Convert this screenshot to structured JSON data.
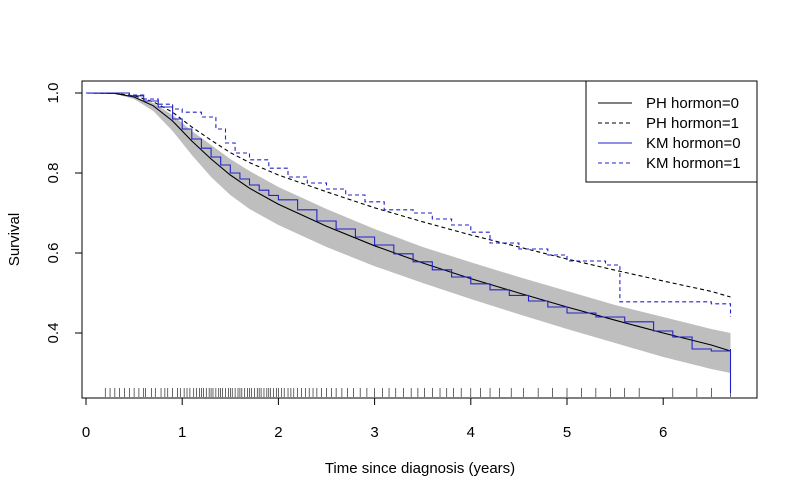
{
  "chart_data": {
    "type": "line",
    "title": "",
    "xlabel": "Time since diagnosis (years)",
    "ylabel": "Survival",
    "xlim": [
      0,
      7
    ],
    "ylim": [
      0.235,
      1.03
    ],
    "x_ticks": [
      "0",
      "1",
      "2",
      "3",
      "4",
      "5",
      "6"
    ],
    "y_ticks": [
      "0.4",
      "0.6",
      "0.8",
      "1.0"
    ],
    "grid": false,
    "legend_position": "top-right",
    "legend": [
      "PH hormon=0",
      "PH hormon=1",
      "KM hormon=0",
      "KM hormon=1"
    ],
    "colors": {
      "ph": "#000000",
      "km": "#2222cc",
      "band": "#bebebe",
      "axis": "#000000"
    },
    "confidence_band": {
      "x": [
        0,
        0.3,
        0.5,
        0.7,
        0.9,
        1.1,
        1.3,
        1.5,
        1.7,
        2.0,
        2.5,
        3.0,
        3.5,
        4.0,
        4.5,
        5.0,
        5.5,
        6.0,
        6.5,
        6.7
      ],
      "lower": [
        1.0,
        0.998,
        0.985,
        0.955,
        0.905,
        0.845,
        0.79,
        0.745,
        0.71,
        0.67,
        0.615,
        0.567,
        0.525,
        0.485,
        0.447,
        0.41,
        0.375,
        0.34,
        0.31,
        0.3
      ],
      "upper": [
        1.0,
        1.0,
        0.99,
        0.975,
        0.945,
        0.905,
        0.87,
        0.835,
        0.805,
        0.765,
        0.71,
        0.66,
        0.615,
        0.577,
        0.54,
        0.505,
        0.47,
        0.44,
        0.41,
        0.4
      ]
    },
    "series": [
      {
        "name": "PH hormon=0",
        "style": "solid",
        "method": "PH",
        "x": [
          0,
          0.3,
          0.5,
          0.7,
          0.9,
          1.1,
          1.3,
          1.5,
          1.7,
          2.0,
          2.5,
          3.0,
          3.5,
          4.0,
          4.5,
          5.0,
          5.5,
          6.0,
          6.5,
          6.7
        ],
        "y": [
          1.0,
          0.999,
          0.99,
          0.968,
          0.93,
          0.88,
          0.835,
          0.795,
          0.762,
          0.722,
          0.667,
          0.618,
          0.575,
          0.536,
          0.5,
          0.465,
          0.432,
          0.4,
          0.37,
          0.355
        ]
      },
      {
        "name": "PH hormon=1",
        "style": "dashed",
        "method": "PH",
        "x": [
          0,
          0.3,
          0.5,
          0.7,
          0.9,
          1.1,
          1.3,
          1.5,
          1.7,
          2.0,
          2.5,
          3.0,
          3.5,
          4.0,
          4.5,
          5.0,
          5.5,
          6.0,
          6.5,
          6.7
        ],
        "y": [
          1.0,
          0.999,
          0.993,
          0.978,
          0.952,
          0.915,
          0.882,
          0.851,
          0.826,
          0.795,
          0.753,
          0.713,
          0.678,
          0.645,
          0.615,
          0.585,
          0.557,
          0.53,
          0.504,
          0.49
        ]
      },
      {
        "name": "KM hormon=0",
        "style": "solid-step",
        "method": "KM",
        "x": [
          0,
          0.45,
          0.6,
          0.75,
          0.9,
          1.0,
          1.1,
          1.2,
          1.3,
          1.4,
          1.5,
          1.6,
          1.7,
          1.8,
          1.9,
          2.0,
          2.2,
          2.4,
          2.6,
          2.8,
          3.0,
          3.2,
          3.4,
          3.6,
          3.8,
          4.0,
          4.2,
          4.4,
          4.6,
          4.8,
          5.0,
          5.3,
          5.6,
          5.9,
          6.1,
          6.3,
          6.5,
          6.7,
          6.7
        ],
        "y": [
          1.0,
          0.993,
          0.98,
          0.965,
          0.935,
          0.91,
          0.885,
          0.862,
          0.84,
          0.82,
          0.8,
          0.785,
          0.77,
          0.757,
          0.744,
          0.733,
          0.708,
          0.68,
          0.66,
          0.64,
          0.62,
          0.598,
          0.578,
          0.558,
          0.54,
          0.523,
          0.508,
          0.494,
          0.48,
          0.465,
          0.45,
          0.44,
          0.428,
          0.405,
          0.39,
          0.36,
          0.355,
          0.36,
          0.25
        ]
      },
      {
        "name": "KM hormon=1",
        "style": "dashed-step",
        "method": "KM",
        "x": [
          0,
          0.45,
          0.6,
          0.75,
          0.9,
          1.0,
          1.2,
          1.35,
          1.45,
          1.55,
          1.7,
          1.9,
          2.1,
          2.3,
          2.5,
          2.7,
          2.9,
          3.1,
          3.4,
          3.6,
          3.8,
          4.0,
          4.2,
          4.5,
          4.8,
          5.0,
          5.4,
          5.55,
          6.0,
          6.5,
          6.7
        ],
        "y": [
          1.0,
          0.995,
          0.985,
          0.972,
          0.96,
          0.952,
          0.94,
          0.91,
          0.875,
          0.85,
          0.833,
          0.812,
          0.79,
          0.775,
          0.76,
          0.745,
          0.728,
          0.708,
          0.7,
          0.685,
          0.67,
          0.652,
          0.625,
          0.61,
          0.595,
          0.58,
          0.57,
          0.478,
          0.478,
          0.473,
          0.44
        ]
      }
    ],
    "rug_x": [
      0.2,
      0.25,
      0.3,
      0.35,
      0.4,
      0.45,
      0.5,
      0.55,
      0.6,
      0.62,
      0.68,
      0.72,
      0.78,
      0.82,
      0.85,
      0.9,
      0.95,
      0.98,
      1.02,
      1.05,
      1.08,
      1.12,
      1.15,
      1.18,
      1.2,
      1.22,
      1.25,
      1.28,
      1.3,
      1.32,
      1.35,
      1.38,
      1.4,
      1.42,
      1.45,
      1.48,
      1.5,
      1.52,
      1.55,
      1.58,
      1.6,
      1.62,
      1.65,
      1.68,
      1.7,
      1.72,
      1.75,
      1.78,
      1.8,
      1.82,
      1.85,
      1.88,
      1.9,
      1.92,
      1.95,
      1.98,
      2.0,
      2.03,
      2.06,
      2.1,
      2.13,
      2.16,
      2.2,
      2.24,
      2.28,
      2.32,
      2.36,
      2.4,
      2.45,
      2.5,
      2.55,
      2.6,
      2.66,
      2.72,
      2.78,
      2.85,
      2.92,
      3.0,
      3.08,
      3.15,
      3.22,
      3.3,
      3.38,
      3.45,
      3.52,
      3.6,
      3.68,
      3.75,
      3.82,
      3.9,
      4.0,
      4.1,
      4.2,
      4.3,
      4.42,
      4.55,
      4.7,
      4.85,
      5.0,
      5.15,
      5.3,
      5.45,
      5.6,
      5.75,
      6.1,
      6.35,
      6.5,
      6.7
    ]
  }
}
